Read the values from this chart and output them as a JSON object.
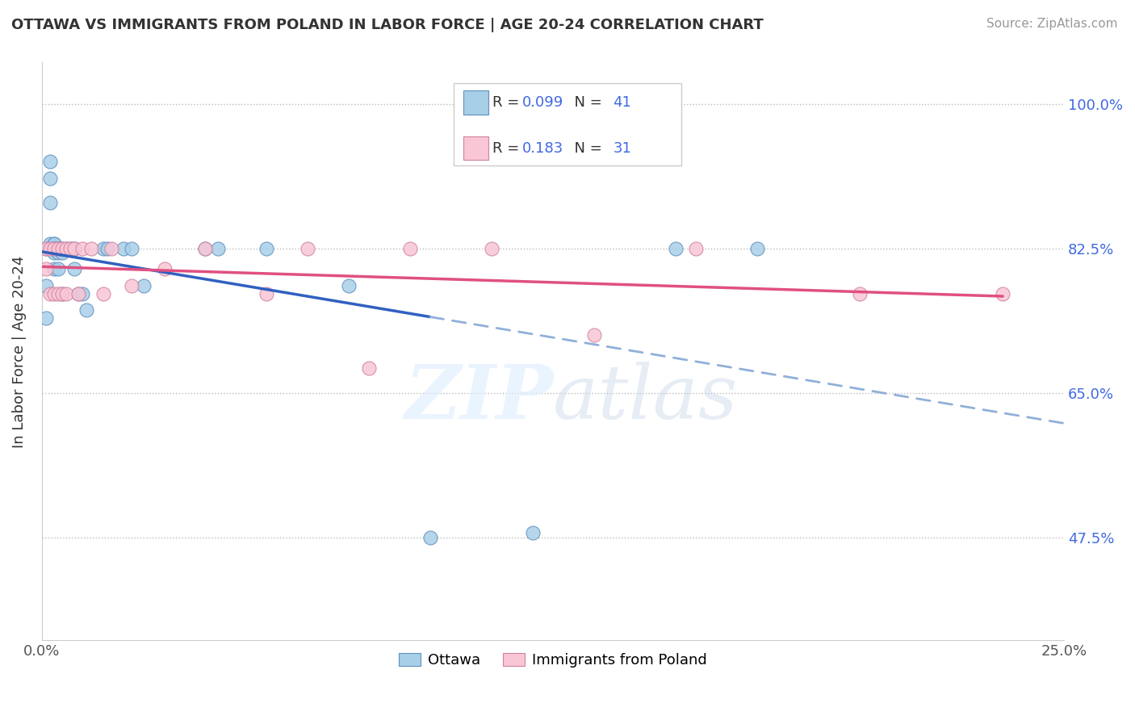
{
  "title": "OTTAWA VS IMMIGRANTS FROM POLAND IN LABOR FORCE | AGE 20-24 CORRELATION CHART",
  "source": "Source: ZipAtlas.com",
  "ylabel": "In Labor Force | Age 20-24",
  "xlim": [
    0.0,
    0.25
  ],
  "ylim": [
    0.35,
    1.05
  ],
  "xtick_pos": [
    0.0,
    0.05,
    0.1,
    0.15,
    0.2,
    0.25
  ],
  "xtick_labels": [
    "0.0%",
    "",
    "",
    "",
    "",
    "25.0%"
  ],
  "ytick_values": [
    1.0,
    0.825,
    0.65,
    0.475
  ],
  "ytick_labels": [
    "100.0%",
    "82.5%",
    "65.0%",
    "47.5%"
  ],
  "ottawa_R": 0.099,
  "ottawa_N": 41,
  "poland_R": 0.183,
  "poland_N": 31,
  "ottawa_color": "#a8cfe8",
  "poland_color": "#f9c6d5",
  "trend_ottawa_color": "#3060c0",
  "trend_poland_color": "#e05080",
  "trend_ottawa_dashed_color": "#90b0d8",
  "background_color": "#ffffff",
  "legend_labels": [
    "Ottawa",
    "Immigrants from Poland"
  ],
  "ottawa_x": [
    0.001,
    0.001,
    0.001,
    0.002,
    0.002,
    0.002,
    0.002,
    0.003,
    0.003,
    0.003,
    0.003,
    0.003,
    0.003,
    0.004,
    0.004,
    0.004,
    0.004,
    0.004,
    0.005,
    0.005,
    0.005,
    0.006,
    0.007,
    0.008,
    0.008,
    0.009,
    0.01,
    0.011,
    0.015,
    0.016,
    0.02,
    0.022,
    0.025,
    0.04,
    0.043,
    0.055,
    0.075,
    0.095,
    0.12,
    0.155,
    0.175
  ],
  "ottawa_y": [
    0.825,
    0.78,
    0.74,
    0.93,
    0.91,
    0.88,
    0.83,
    0.83,
    0.83,
    0.825,
    0.825,
    0.82,
    0.8,
    0.825,
    0.825,
    0.825,
    0.82,
    0.8,
    0.825,
    0.82,
    0.77,
    0.825,
    0.825,
    0.825,
    0.8,
    0.77,
    0.77,
    0.75,
    0.825,
    0.825,
    0.825,
    0.825,
    0.78,
    0.825,
    0.825,
    0.825,
    0.78,
    0.475,
    0.48,
    0.825,
    0.825
  ],
  "poland_x": [
    0.001,
    0.001,
    0.002,
    0.002,
    0.003,
    0.003,
    0.004,
    0.004,
    0.005,
    0.005,
    0.006,
    0.006,
    0.007,
    0.008,
    0.009,
    0.01,
    0.012,
    0.015,
    0.017,
    0.022,
    0.03,
    0.04,
    0.055,
    0.065,
    0.08,
    0.09,
    0.11,
    0.135,
    0.16,
    0.2,
    0.235
  ],
  "poland_y": [
    0.825,
    0.8,
    0.825,
    0.77,
    0.825,
    0.77,
    0.825,
    0.77,
    0.825,
    0.77,
    0.825,
    0.77,
    0.825,
    0.825,
    0.77,
    0.825,
    0.825,
    0.77,
    0.825,
    0.78,
    0.8,
    0.825,
    0.77,
    0.825,
    0.68,
    0.825,
    0.825,
    0.72,
    0.825,
    0.77,
    0.77
  ]
}
